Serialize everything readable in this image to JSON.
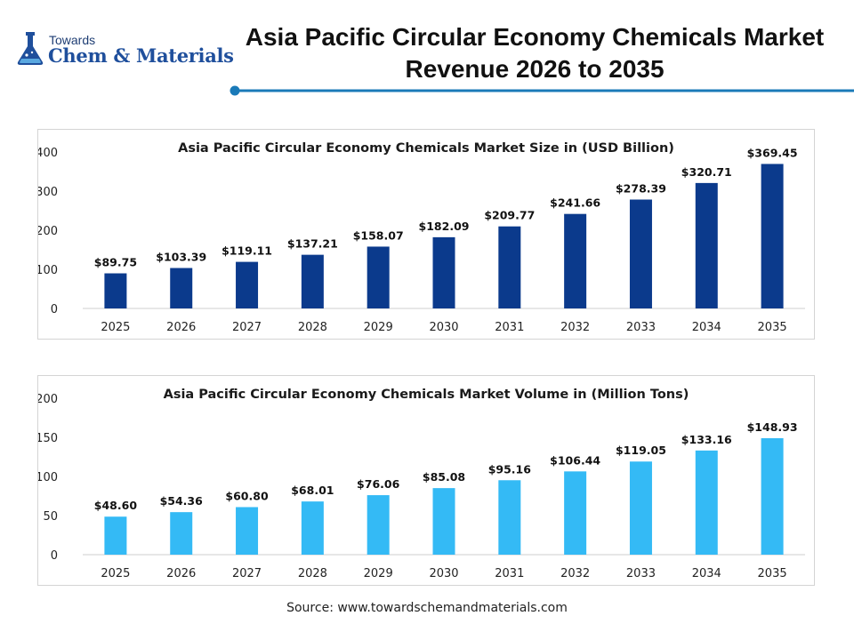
{
  "header": {
    "logo_small": "Towards",
    "logo_big": "Chem & Materials",
    "title_line1": "Asia Pacific Circular Economy Chemicals Market",
    "title_line2": "Revenue 2026 to 2035"
  },
  "colors": {
    "size_bar": "#0b3a8c",
    "volume_bar": "#34baf5",
    "accent_line": "#1a7ab8"
  },
  "chart_data": [
    {
      "type": "bar",
      "title": "Asia Pacific Circular Economy Chemicals Market Size in (USD Billion)",
      "categories": [
        "2025",
        "2026",
        "2027",
        "2028",
        "2029",
        "2030",
        "2031",
        "2032",
        "2033",
        "2034",
        "2035"
      ],
      "values": [
        89.75,
        103.39,
        119.11,
        137.21,
        158.07,
        182.09,
        209.77,
        241.66,
        278.39,
        320.71,
        369.45
      ],
      "data_labels": [
        "$89.75",
        "$103.39",
        "$119.11",
        "$137.21",
        "$158.07",
        "$182.09",
        "$209.77",
        "$241.66",
        "$278.39",
        "$320.71",
        "$369.45"
      ],
      "yticks": [
        0,
        100,
        200,
        300,
        400
      ],
      "ylim": [
        0,
        400
      ],
      "grid": false,
      "legend": "none"
    },
    {
      "type": "bar",
      "title": "Asia Pacific Circular Economy Chemicals Market Volume in (Million Tons)",
      "categories": [
        "2025",
        "2026",
        "2027",
        "2028",
        "2029",
        "2030",
        "2031",
        "2032",
        "2033",
        "2034",
        "2035"
      ],
      "values": [
        48.6,
        54.36,
        60.8,
        68.01,
        76.06,
        85.08,
        95.16,
        106.44,
        119.05,
        133.16,
        148.93
      ],
      "data_labels": [
        "$48.60",
        "$54.36",
        "$60.80",
        "$68.01",
        "$76.06",
        "$85.08",
        "$95.16",
        "$106.44",
        "$119.05",
        "$133.16",
        "$148.93"
      ],
      "yticks": [
        0,
        50,
        100,
        150,
        200
      ],
      "ylim": [
        0,
        200
      ],
      "grid": false,
      "legend": "none"
    }
  ],
  "footer": {
    "source": "Source: www.towardschemandmaterials.com"
  }
}
